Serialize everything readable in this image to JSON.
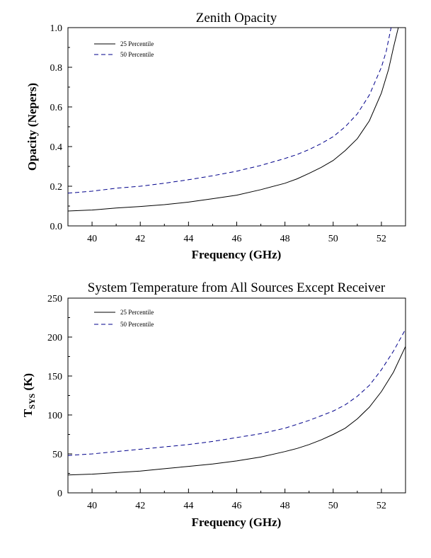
{
  "chart_data": [
    {
      "type": "line",
      "title": "Zenith Opacity",
      "xlabel": "Frequency (GHz)",
      "ylabel": "Opacity (Nepers)",
      "xlim": [
        39,
        53
      ],
      "ylim": [
        0,
        1.0
      ],
      "xticks": [
        40,
        42,
        44,
        46,
        48,
        50,
        52
      ],
      "yticks": [
        0.0,
        0.2,
        0.4,
        0.6,
        0.8,
        1.0
      ],
      "ytick_labels": [
        "0.0",
        "0.2",
        "0.4",
        "0.6",
        "0.8",
        "1.0"
      ],
      "legend_position": "top-left",
      "grid": false,
      "series": [
        {
          "name": "25 Percentile",
          "style": "solid",
          "color": "#000000",
          "x": [
            39,
            40,
            41,
            42,
            43,
            44,
            45,
            46,
            47,
            48,
            48.5,
            49,
            49.5,
            50,
            50.5,
            51,
            51.5,
            52,
            52.3,
            52.5,
            52.7
          ],
          "y": [
            0.075,
            0.08,
            0.09,
            0.098,
            0.107,
            0.12,
            0.137,
            0.155,
            0.183,
            0.215,
            0.237,
            0.265,
            0.295,
            0.33,
            0.38,
            0.44,
            0.53,
            0.67,
            0.79,
            0.9,
            1.0
          ]
        },
        {
          "name": "50 Percentile",
          "style": "dashed",
          "color": "#00008b",
          "x": [
            39,
            40,
            41,
            42,
            43,
            44,
            45,
            46,
            47,
            48,
            48.5,
            49,
            49.5,
            50,
            50.5,
            51,
            51.5,
            52,
            52.2,
            52.4
          ],
          "y": [
            0.165,
            0.175,
            0.19,
            0.2,
            0.215,
            0.233,
            0.253,
            0.276,
            0.305,
            0.34,
            0.36,
            0.385,
            0.415,
            0.45,
            0.5,
            0.565,
            0.66,
            0.8,
            0.88,
            1.0
          ]
        }
      ]
    },
    {
      "type": "line",
      "title": "System Temperature from All Sources Except Receiver",
      "xlabel": "Frequency (GHz)",
      "ylabel": "TSYS (K)",
      "ylabel_main": "T",
      "ylabel_sub": "SYS",
      "ylabel_rest": " (K)",
      "xlim": [
        39,
        53
      ],
      "ylim": [
        0,
        250
      ],
      "xticks": [
        40,
        42,
        44,
        46,
        48,
        50,
        52
      ],
      "yticks": [
        0,
        50,
        100,
        150,
        200,
        250
      ],
      "ytick_labels": [
        "0",
        "50",
        "100",
        "150",
        "200",
        "250"
      ],
      "legend_position": "top-left",
      "grid": false,
      "series": [
        {
          "name": "25 Percentile",
          "style": "solid",
          "color": "#000000",
          "x": [
            39,
            40,
            41,
            42,
            43,
            44,
            45,
            46,
            47,
            48,
            48.5,
            49,
            49.5,
            50,
            50.5,
            51,
            51.5,
            52,
            52.5,
            53
          ],
          "y": [
            23,
            24,
            26,
            28,
            31,
            34,
            37,
            41,
            46,
            53,
            57,
            62,
            68,
            75,
            83,
            95,
            110,
            130,
            155,
            188
          ]
        },
        {
          "name": "50 Percentile",
          "style": "dashed",
          "color": "#00008b",
          "x": [
            39,
            40,
            41,
            42,
            43,
            44,
            45,
            46,
            47,
            48,
            48.5,
            49,
            49.5,
            50,
            50.5,
            51,
            51.5,
            52,
            52.5,
            53
          ],
          "y": [
            48,
            50,
            53,
            56,
            59,
            62,
            66,
            71,
            76,
            83,
            88,
            93,
            99,
            105,
            113,
            124,
            138,
            158,
            182,
            210
          ]
        }
      ]
    }
  ]
}
